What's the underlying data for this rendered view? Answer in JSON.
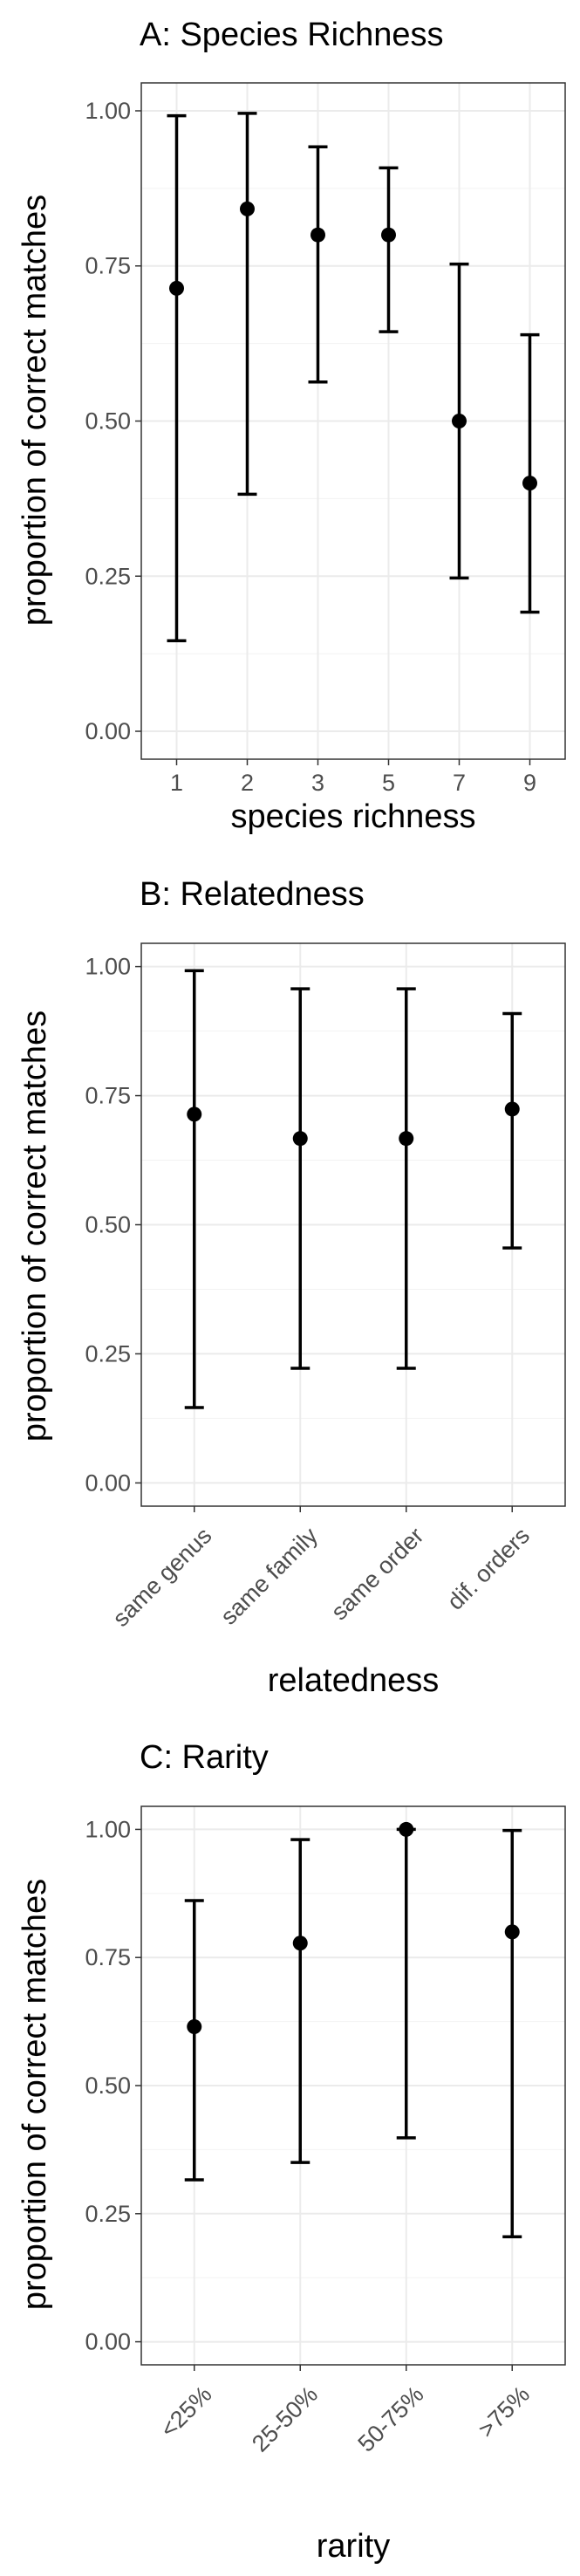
{
  "chart_data": [
    {
      "type": "errorbar",
      "title": "A: Species Richness",
      "xlabel": "species richness",
      "ylabel": "proportion of correct matches",
      "categories": [
        "1",
        "2",
        "3",
        "5",
        "7",
        "9"
      ],
      "values": [
        0.714,
        0.842,
        0.8,
        0.8,
        0.5,
        0.4
      ],
      "lower": [
        0.146,
        0.382,
        0.563,
        0.644,
        0.247,
        0.192
      ],
      "upper": [
        0.992,
        0.996,
        0.942,
        0.908,
        0.753,
        0.639
      ],
      "yticks": [
        "0.00",
        "0.25",
        "0.50",
        "0.75",
        "1.00"
      ],
      "ylim": [
        -0.045,
        1.045
      ],
      "grid": true,
      "rotate_x_labels": false
    },
    {
      "type": "errorbar",
      "title": "B: Relatedness",
      "xlabel": "relatedness",
      "ylabel": "proportion of correct matches",
      "categories": [
        "same genus",
        "same family",
        "same order",
        "dif. orders"
      ],
      "values": [
        0.714,
        0.667,
        0.667,
        0.724
      ],
      "lower": [
        0.146,
        0.222,
        0.222,
        0.455
      ],
      "upper": [
        0.992,
        0.957,
        0.957,
        0.909
      ],
      "yticks": [
        "0.00",
        "0.25",
        "0.50",
        "0.75",
        "1.00"
      ],
      "ylim": [
        -0.045,
        1.045
      ],
      "grid": true,
      "rotate_x_labels": true
    },
    {
      "type": "errorbar",
      "title": "C: Rarity",
      "xlabel": "rarity",
      "ylabel": "proportion of correct matches",
      "categories": [
        "<25%",
        "25-50%",
        "50-75%",
        ">75%"
      ],
      "values": [
        0.615,
        0.778,
        1.0,
        0.8
      ],
      "lower": [
        0.316,
        0.35,
        0.398,
        0.205
      ],
      "upper": [
        0.861,
        0.98,
        1.0,
        0.998
      ],
      "yticks": [
        "0.00",
        "0.25",
        "0.50",
        "0.75",
        "1.00"
      ],
      "ylim": [
        -0.045,
        1.045
      ],
      "grid": true,
      "rotate_x_labels": true
    }
  ]
}
